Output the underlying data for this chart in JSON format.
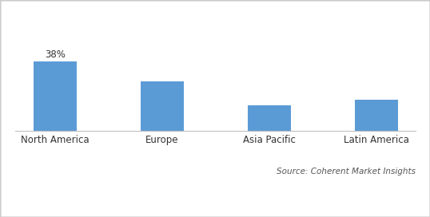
{
  "categories": [
    "North America",
    "Europe",
    "Asia Pacific",
    "Latin America"
  ],
  "values": [
    38,
    27,
    14,
    17
  ],
  "bar_color": "#5B9BD5",
  "annotation_label": "38%",
  "annotation_index": 0,
  "source_text": "Source: Coherent Market Insights",
  "background_color": "#ffffff",
  "bar_width": 0.4,
  "ylim": [
    0,
    65
  ],
  "annotation_fontsize": 8.5,
  "tick_fontsize": 8.5,
  "source_fontsize": 7.5,
  "border_color": "#cccccc",
  "spine_bottom_color": "#c0c0c0"
}
